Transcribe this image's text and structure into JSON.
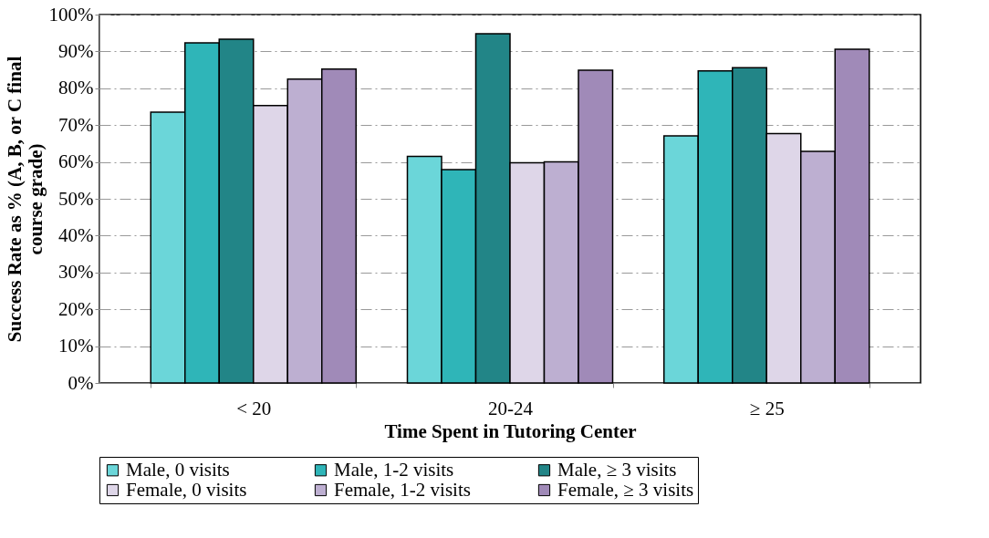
{
  "chart_data": {
    "type": "bar",
    "xlabel": "Time Spent in Tutoring Center",
    "ylabel": "Success Rate as % (A, B, or C final course grade)",
    "categories": [
      "< 20",
      "20-24",
      "≥ 25"
    ],
    "series": [
      {
        "name": "Male, 0 visits",
        "color": "#6bd6d9",
        "values": [
          73.5,
          61.5,
          67.1
        ]
      },
      {
        "name": "Male, 1-2 visits",
        "color": "#2fb5b8",
        "values": [
          92.3,
          57.9,
          84.7
        ]
      },
      {
        "name": "Male, ≥ 3 visits",
        "color": "#228587",
        "values": [
          93.3,
          94.8,
          85.6
        ]
      },
      {
        "name": "Female, 0 visits",
        "color": "#ded6e8",
        "values": [
          75.3,
          59.8,
          67.7
        ]
      },
      {
        "name": "Female, 1-2 visits",
        "color": "#bdafd1",
        "values": [
          82.5,
          60.0,
          62.9
        ]
      },
      {
        "name": "Female, ≥ 3 visits",
        "color": "#a08ab8",
        "values": [
          85.2,
          84.9,
          90.6
        ]
      }
    ],
    "ylim": [
      0,
      100
    ],
    "yticks": [
      {
        "value": 0,
        "label": "0%"
      },
      {
        "value": 10,
        "label": "10%"
      },
      {
        "value": 20,
        "label": "20%"
      },
      {
        "value": 30,
        "label": "30%"
      },
      {
        "value": 40,
        "label": "40%"
      },
      {
        "value": 50,
        "label": "50%"
      },
      {
        "value": 60,
        "label": "60%"
      },
      {
        "value": 70,
        "label": "70%"
      },
      {
        "value": 80,
        "label": "80%"
      },
      {
        "value": 90,
        "label": "90%"
      },
      {
        "value": 100,
        "label": "100%"
      }
    ],
    "grid": "y",
    "legend": "bottom"
  }
}
